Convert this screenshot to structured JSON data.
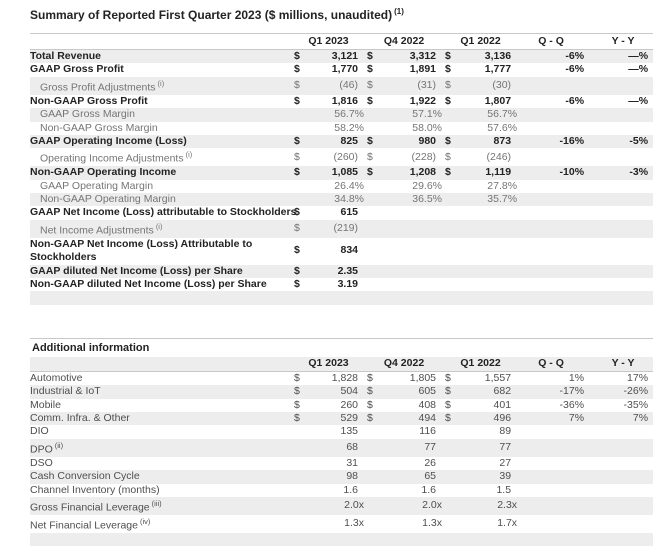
{
  "page": {
    "title": "Summary of Reported First Quarter 2023 ($ millions, unaudited)",
    "title_sup": "(1)"
  },
  "colors": {
    "stripe": "#ededed",
    "border": "#c8c8c8",
    "text_bold": "#232323",
    "text_muted": "#757575",
    "text_regular": "#4f4f4f"
  },
  "summary_table": {
    "columns": [
      "Q1 2023",
      "Q4 2022",
      "Q1 2022",
      "Q - Q",
      "Y - Y"
    ],
    "rows": [
      {
        "label": "Total Revenue",
        "style": "bold",
        "cells": [
          [
            "$",
            "3,121"
          ],
          [
            "$",
            "3,312"
          ],
          [
            "$",
            "3,136"
          ]
        ],
        "qq": "-6%",
        "yy": "—%"
      },
      {
        "label": "GAAP Gross Profit",
        "style": "bold",
        "cells": [
          [
            "$",
            "1,770"
          ],
          [
            "$",
            "1,891"
          ],
          [
            "$",
            "1,777"
          ]
        ],
        "qq": "-6%",
        "yy": "—%"
      },
      {
        "label": "Gross Profit Adjustments",
        "sup": "(i)",
        "style": "indent",
        "cells": [
          [
            "$",
            "(46)"
          ],
          [
            "$",
            "(31)"
          ],
          [
            "$",
            "(30)"
          ]
        ]
      },
      {
        "label": "Non-GAAP Gross Profit",
        "style": "bold",
        "cells": [
          [
            "$",
            "1,816"
          ],
          [
            "$",
            "1,922"
          ],
          [
            "$",
            "1,807"
          ]
        ],
        "qq": "-6%",
        "yy": "—%"
      },
      {
        "label": "GAAP Gross Margin",
        "style": "indent",
        "cells": [
          [
            "",
            "56.7%"
          ],
          [
            "",
            "57.1%"
          ],
          [
            "",
            "56.7%"
          ]
        ]
      },
      {
        "label": "Non-GAAP Gross Margin",
        "style": "indent",
        "cells": [
          [
            "",
            "58.2%"
          ],
          [
            "",
            "58.0%"
          ],
          [
            "",
            "57.6%"
          ]
        ]
      },
      {
        "label": "GAAP Operating Income (Loss)",
        "style": "bold",
        "cells": [
          [
            "$",
            "825"
          ],
          [
            "$",
            "980"
          ],
          [
            "$",
            "873"
          ]
        ],
        "qq": "-16%",
        "yy": "-5%"
      },
      {
        "label": "Operating Income Adjustments",
        "sup": "(i)",
        "style": "indent",
        "cells": [
          [
            "$",
            "(260)"
          ],
          [
            "$",
            "(228)"
          ],
          [
            "$",
            "(246)"
          ]
        ]
      },
      {
        "label": "Non-GAAP Operating Income",
        "style": "bold",
        "cells": [
          [
            "$",
            "1,085"
          ],
          [
            "$",
            "1,208"
          ],
          [
            "$",
            "1,119"
          ]
        ],
        "qq": "-10%",
        "yy": "-3%"
      },
      {
        "label": "GAAP Operating Margin",
        "style": "indent",
        "cells": [
          [
            "",
            "26.4%"
          ],
          [
            "",
            "29.6%"
          ],
          [
            "",
            "27.8%"
          ]
        ]
      },
      {
        "label": "Non-GAAP Operating Margin",
        "style": "indent",
        "cells": [
          [
            "",
            "34.8%"
          ],
          [
            "",
            "36.5%"
          ],
          [
            "",
            "35.7%"
          ]
        ]
      },
      {
        "label": "GAAP Net Income (Loss) attributable to Stockholders",
        "style": "bold",
        "cells": [
          [
            "$",
            "615"
          ]
        ]
      },
      {
        "label": "Net Income Adjustments",
        "sup": "(i)",
        "style": "indent",
        "cells": [
          [
            "$",
            "(219)"
          ]
        ]
      },
      {
        "label": "Non-GAAP Net Income (Loss) Attributable to Stockholders",
        "style": "bold",
        "wrap": true,
        "cells": [
          [
            "$",
            "834"
          ]
        ]
      },
      {
        "label": "GAAP diluted Net Income (Loss) per Share",
        "style": "bold",
        "cells": [
          [
            "$",
            "2.35"
          ]
        ]
      },
      {
        "label": "Non-GAAP diluted Net Income (Loss) per Share",
        "style": "bold",
        "cells": [
          [
            "$",
            "3.19"
          ]
        ]
      },
      {
        "style": "empty"
      }
    ]
  },
  "additional_table": {
    "title": "Additional information",
    "columns": [
      "Q1 2023",
      "Q4 2022",
      "Q1 2022",
      "Q - Q",
      "Y - Y"
    ],
    "rows": [
      {
        "label": "Automotive",
        "style": "plain",
        "cells": [
          [
            "$",
            "1,828"
          ],
          [
            "$",
            "1,805"
          ],
          [
            "$",
            "1,557"
          ]
        ],
        "qq": "1%",
        "yy": "17%"
      },
      {
        "label": "Industrial & IoT",
        "style": "plain",
        "cells": [
          [
            "$",
            "504"
          ],
          [
            "$",
            "605"
          ],
          [
            "$",
            "682"
          ]
        ],
        "qq": "-17%",
        "yy": "-26%"
      },
      {
        "label": "Mobile",
        "style": "plain",
        "cells": [
          [
            "$",
            "260"
          ],
          [
            "$",
            "408"
          ],
          [
            "$",
            "401"
          ]
        ],
        "qq": "-36%",
        "yy": "-35%"
      },
      {
        "label": "Comm. Infra. & Other",
        "style": "plain",
        "cells": [
          [
            "$",
            "529"
          ],
          [
            "$",
            "494"
          ],
          [
            "$",
            "496"
          ]
        ],
        "qq": "7%",
        "yy": "7%"
      },
      {
        "label": "DIO",
        "style": "plain",
        "cells": [
          [
            "",
            "135"
          ],
          [
            "",
            "116"
          ],
          [
            "",
            "89"
          ]
        ]
      },
      {
        "label": "DPO",
        "sup": "(ii)",
        "style": "plain",
        "cells": [
          [
            "",
            "68"
          ],
          [
            "",
            "77"
          ],
          [
            "",
            "77"
          ]
        ]
      },
      {
        "label": "DSO",
        "style": "plain",
        "cells": [
          [
            "",
            "31"
          ],
          [
            "",
            "26"
          ],
          [
            "",
            "27"
          ]
        ]
      },
      {
        "label": "Cash Conversion Cycle",
        "style": "plain",
        "cells": [
          [
            "",
            "98"
          ],
          [
            "",
            "65"
          ],
          [
            "",
            "39"
          ]
        ]
      },
      {
        "label": "Channel Inventory (months)",
        "style": "plain",
        "cells": [
          [
            "",
            "1.6"
          ],
          [
            "",
            "1.6"
          ],
          [
            "",
            "1.5"
          ]
        ]
      },
      {
        "label": "Gross Financial Leverage",
        "sup": "(iii)",
        "style": "plain",
        "cells": [
          [
            "",
            "2.0x"
          ],
          [
            "",
            "2.0x"
          ],
          [
            "",
            "2.3x"
          ]
        ]
      },
      {
        "label": "Net Financial Leverage",
        "sup": "(iv)",
        "style": "plain",
        "cells": [
          [
            "",
            "1.3x"
          ],
          [
            "",
            "1.3x"
          ],
          [
            "",
            "1.7x"
          ]
        ]
      },
      {
        "style": "empty"
      }
    ]
  }
}
